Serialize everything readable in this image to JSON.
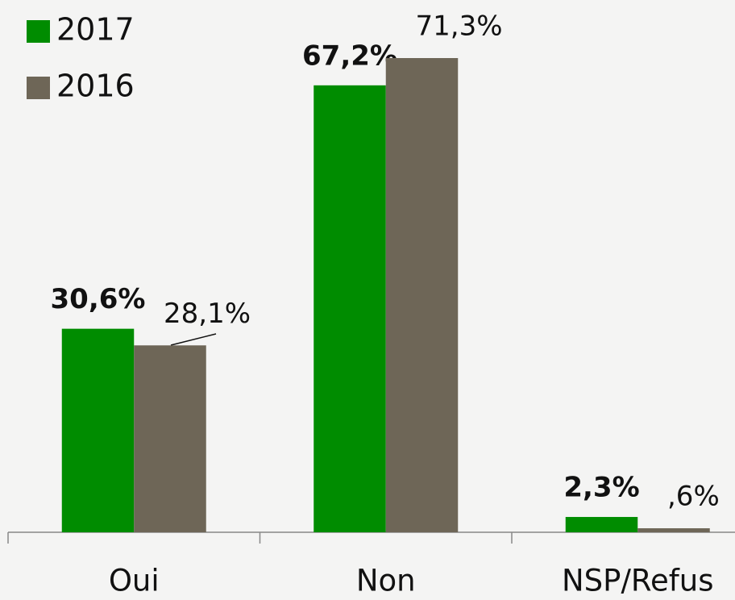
{
  "chart_data": {
    "type": "bar",
    "categories": [
      "Oui",
      "Non",
      "NSP/Refus"
    ],
    "series": [
      {
        "name": "2017",
        "color": "#008c00",
        "values": [
          30.6,
          67.2,
          2.3
        ],
        "value_labels": [
          "30,6%",
          "67,2%",
          "2,3%"
        ]
      },
      {
        "name": "2016",
        "color": "#6e6657",
        "values": [
          28.1,
          71.3,
          0.6
        ],
        "value_labels": [
          "28,1%",
          "71,3%",
          ",6%"
        ]
      }
    ],
    "legend": "top-left"
  }
}
